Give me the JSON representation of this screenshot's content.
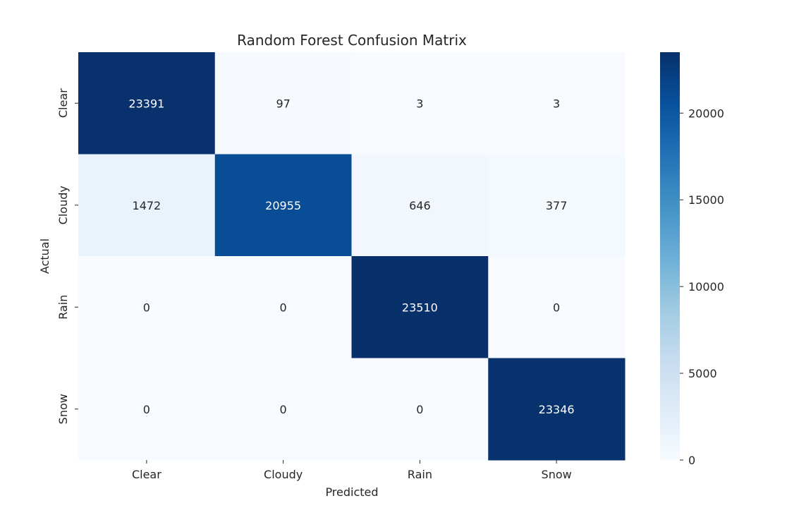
{
  "chart_data": {
    "type": "heatmap",
    "title": "Random Forest Confusion Matrix",
    "xlabel": "Predicted",
    "ylabel": "Actual",
    "x_categories": [
      "Clear",
      "Cloudy",
      "Rain",
      "Snow"
    ],
    "y_categories": [
      "Clear",
      "Cloudy",
      "Rain",
      "Snow"
    ],
    "values": [
      [
        23391,
        97,
        3,
        3
      ],
      [
        1472,
        20955,
        646,
        377
      ],
      [
        0,
        0,
        23510,
        0
      ],
      [
        0,
        0,
        0,
        23346
      ]
    ],
    "colormap": "Blues",
    "colorbar": {
      "range": [
        0,
        23510
      ],
      "ticks": [
        0,
        5000,
        10000,
        15000,
        20000
      ],
      "tick_labels": [
        "0",
        "5000",
        "10000",
        "15000",
        "20000"
      ]
    }
  }
}
